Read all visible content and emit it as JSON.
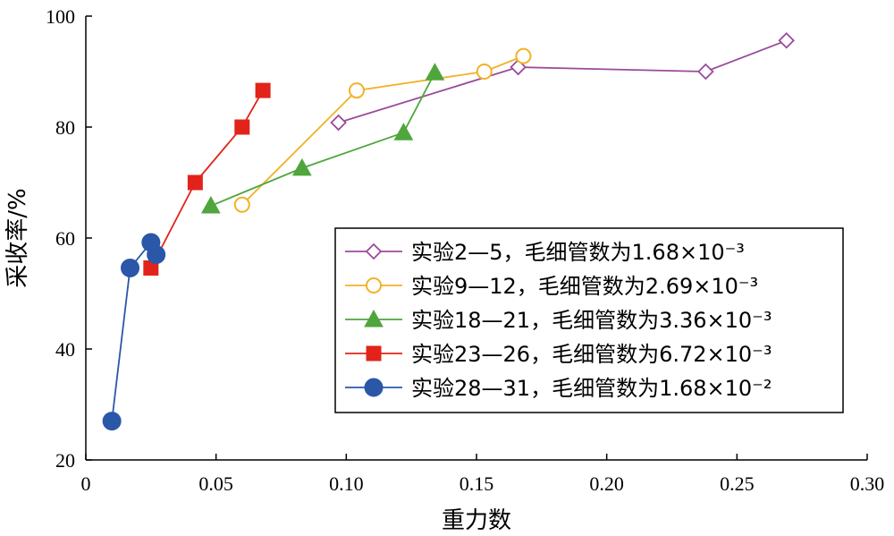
{
  "chart_data": {
    "type": "line",
    "title": "",
    "xlabel": "重力数",
    "ylabel": "采收率/%",
    "xlim": [
      0,
      0.3
    ],
    "ylim": [
      20,
      100
    ],
    "x_ticks": [
      "0",
      "0.05",
      "0.10",
      "0.15",
      "0.20",
      "0.25",
      "0.30"
    ],
    "y_ticks": [
      "20",
      "40",
      "60",
      "80",
      "100"
    ],
    "grid": false,
    "legend_position": "lower-right",
    "series": [
      {
        "name": "实验2—5，毛细管数为1.68×10⁻³",
        "marker": "diamond-open",
        "color": "#9b4a9b",
        "x": [
          0.097,
          0.166,
          0.238,
          0.269
        ],
        "y": [
          80.8,
          90.8,
          90.0,
          95.6
        ]
      },
      {
        "name": "实验9—12，毛细管数为2.69×10⁻³",
        "marker": "circle-open",
        "color": "#f2b126",
        "x": [
          0.06,
          0.104,
          0.153,
          0.168
        ],
        "y": [
          66.0,
          86.6,
          90.0,
          92.8
        ]
      },
      {
        "name": "实验18—21，毛细管数为3.36×10⁻³",
        "marker": "triangle",
        "color": "#4ea63c",
        "x": [
          0.048,
          0.083,
          0.122,
          0.134
        ],
        "y": [
          65.8,
          72.6,
          79.0,
          89.8
        ]
      },
      {
        "name": "实验23—26，毛细管数为6.72×10⁻³",
        "marker": "square",
        "color": "#e2231a",
        "x": [
          0.025,
          0.042,
          0.06,
          0.068
        ],
        "y": [
          54.6,
          70.0,
          80.0,
          86.6
        ]
      },
      {
        "name": "实验28—31，毛细管数为1.68×10⁻²",
        "marker": "circle",
        "color": "#2a57a8",
        "x": [
          0.01,
          0.017,
          0.025,
          0.027
        ],
        "y": [
          27.0,
          54.6,
          59.2,
          57.0
        ]
      }
    ]
  }
}
